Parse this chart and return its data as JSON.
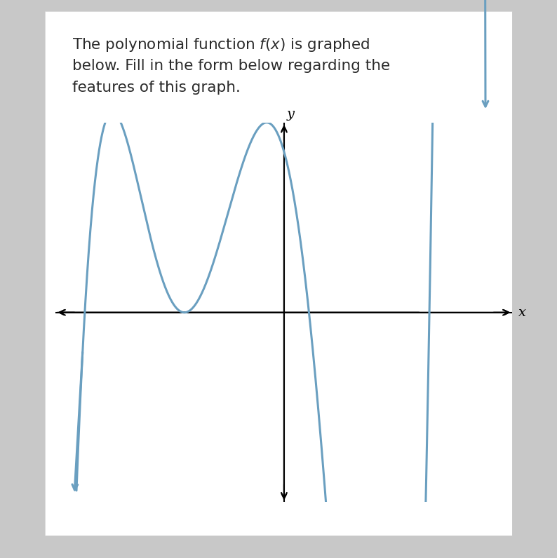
{
  "curve_color": "#6a9fc0",
  "curve_linewidth": 2.2,
  "axis_color": "#000000",
  "background_color": "#ffffff",
  "outer_bg": "#c8c8c8",
  "xlim": [
    -5.5,
    5.5
  ],
  "ylim": [
    -4.8,
    4.8
  ],
  "xlabel": "x",
  "ylabel": "y",
  "text_lines": [
    "The polynomial function $f(x)$ is graphed",
    "below. Fill in the form below regarding the",
    "features of this graph."
  ],
  "text_fontsize": 15.5,
  "text_color": "#2b2b2b"
}
